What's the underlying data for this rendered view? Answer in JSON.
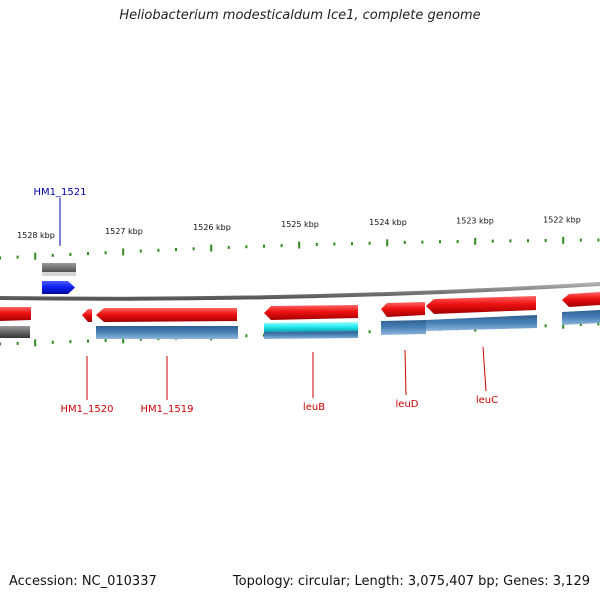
{
  "title": "Heliobacterium modesticaldum Ice1, complete genome",
  "footer": {
    "accession": "Accession: NC_010337",
    "summary": "Topology: circular; Length: 3,075,407 bp; Genes: 3,129"
  },
  "colors": {
    "backbone": "#7d7d7d",
    "tick": "#2f8a1f",
    "gene_red": "#ee1111",
    "gene_dark": "#666666",
    "gene_blue": "#0a1eee",
    "gene_steel": "#4a82b8",
    "gene_cyan": "#22e8ee",
    "label_red": "#cc0000",
    "label_blue": "#0000aa"
  },
  "ticks": [
    {
      "label": "1528 kbp"
    },
    {
      "label": "1527 kbp"
    },
    {
      "label": "1526 kbp"
    },
    {
      "label": "1525 kbp"
    },
    {
      "label": "1524 kbp"
    },
    {
      "label": "1523 kbp"
    },
    {
      "label": "1522 kbp"
    }
  ],
  "gene_labels": [
    {
      "text": "HM1_1521",
      "color": "label_blue"
    },
    {
      "text": "HM1_1520",
      "color": "label_red"
    },
    {
      "text": "HM1_1519",
      "color": "label_red"
    },
    {
      "text": "leuB",
      "color": "label_red"
    },
    {
      "text": "leuD",
      "color": "label_red"
    },
    {
      "text": "leuC",
      "color": "label_red"
    }
  ]
}
